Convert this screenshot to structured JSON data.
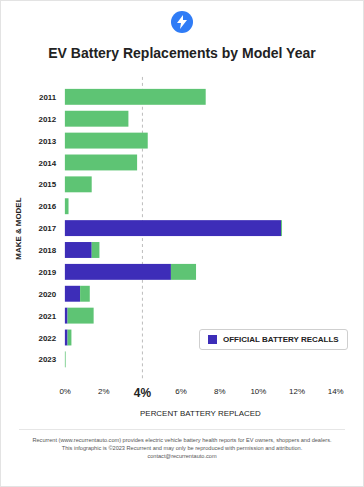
{
  "chart_data": {
    "type": "bar",
    "orientation": "horizontal",
    "stacked": true,
    "title": "EV Battery Replacements by Model Year",
    "ylabel": "MAKE & MODEL",
    "xlabel": "PERCENT BATTERY REPLACED",
    "categories": [
      "2011",
      "2012",
      "2013",
      "2014",
      "2015",
      "2016",
      "2017",
      "2018",
      "2019",
      "2020",
      "2021",
      "2022",
      "2023"
    ],
    "series": [
      {
        "name": "OFFICIAL BATTERY RECALLS",
        "color": "#3d2db8",
        "values": [
          0,
          0,
          0,
          0,
          0,
          0,
          11.2,
          1.4,
          5.5,
          0.8,
          0.15,
          0.15,
          0
        ]
      },
      {
        "name": null,
        "color": "#5ec474",
        "values": [
          7.3,
          3.3,
          4.3,
          3.75,
          1.4,
          0.2,
          0.05,
          0.4,
          1.3,
          0.5,
          1.35,
          0.2,
          0.05
        ]
      }
    ],
    "xlim": [
      0,
      14
    ],
    "xticks": [
      {
        "value": 0,
        "label": "0%"
      },
      {
        "value": 2,
        "label": "2%"
      },
      {
        "value": 4,
        "label": "4%"
      },
      {
        "value": 6,
        "label": "6%"
      },
      {
        "value": 8,
        "label": "8%"
      },
      {
        "value": 10,
        "label": "10%"
      },
      {
        "value": 12,
        "label": "12%"
      },
      {
        "value": 14,
        "label": "14%"
      }
    ],
    "reference_line": 4,
    "grid": false,
    "legend": "right",
    "caption": [
      "Recurrent (www.recurrentauto.com) provides electric vehicle battery health reports for EV owners, shoppers and dealers.",
      "This infographic is ©2023 Recurrent and may only be reproduced with permission and attribution.",
      "contact@recurrentauto.com"
    ]
  }
}
